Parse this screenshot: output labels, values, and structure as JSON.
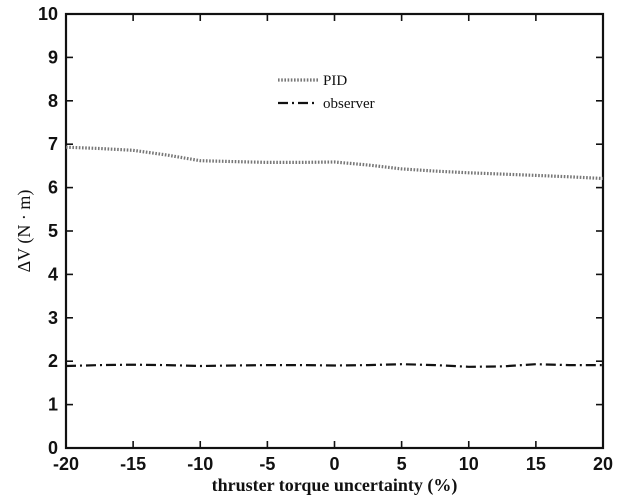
{
  "chart_data": {
    "type": "line",
    "xlabel": "thruster torque uncertainty (%)",
    "ylabel": "ΔV (N · m)",
    "xlim": [
      -20,
      20
    ],
    "ylim": [
      0,
      10
    ],
    "xticks": [
      -20,
      -15,
      -10,
      -5,
      0,
      5,
      10,
      15,
      20
    ],
    "yticks": [
      0,
      1,
      2,
      3,
      4,
      5,
      6,
      7,
      8,
      9,
      10
    ],
    "grid": false,
    "legend": {
      "placement": "top-center"
    },
    "series": [
      {
        "name": "PID",
        "style": "dotted",
        "color": "#777777",
        "x": [
          -20,
          -17.5,
          -15,
          -12.5,
          -10,
          -7.5,
          -5,
          -2.5,
          0,
          2.5,
          5,
          7.5,
          10,
          12.5,
          15,
          17.5,
          20
        ],
        "y": [
          6.93,
          6.9,
          6.86,
          6.75,
          6.62,
          6.6,
          6.58,
          6.58,
          6.59,
          6.52,
          6.43,
          6.38,
          6.34,
          6.31,
          6.28,
          6.25,
          6.21
        ]
      },
      {
        "name": "observer",
        "style": "dashdot",
        "color": "#111111",
        "x": [
          -20,
          -17.5,
          -15,
          -12.5,
          -10,
          -7.5,
          -5,
          -2.5,
          0,
          2.5,
          5,
          7.5,
          10,
          12.5,
          15,
          17.5,
          20
        ],
        "y": [
          1.89,
          1.91,
          1.92,
          1.91,
          1.89,
          1.9,
          1.91,
          1.91,
          1.9,
          1.91,
          1.93,
          1.91,
          1.87,
          1.88,
          1.93,
          1.91,
          1.91
        ]
      }
    ]
  }
}
